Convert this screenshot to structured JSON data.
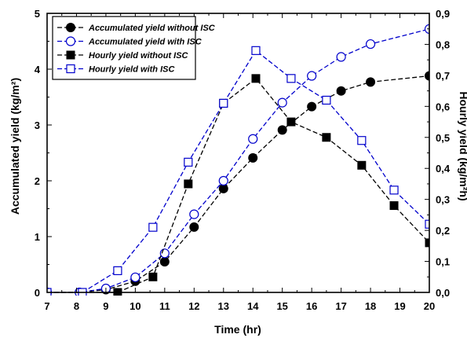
{
  "chart_data": {
    "type": "line",
    "xlabel": "Time (hr)",
    "ylabel_left": "Accumulated yield (kg/m²)",
    "ylabel_right": "Hourly yield (kg/m²h)",
    "xlim": [
      7,
      20
    ],
    "ylim_left": [
      0,
      5
    ],
    "ylim_right": [
      0,
      0.9
    ],
    "x_ticks": [
      "7",
      "8",
      "9",
      "10",
      "11",
      "12",
      "13",
      "14",
      "15",
      "16",
      "17",
      "18",
      "19",
      "20"
    ],
    "y_left_ticks": [
      "0",
      "1",
      "2",
      "3",
      "4",
      "5"
    ],
    "y_right_ticks": [
      "0,0",
      "0,1",
      "0,2",
      "0,3",
      "0,4",
      "0,5",
      "0,6",
      "0,7",
      "0,8",
      "0,9"
    ],
    "grid": false,
    "legend_position": "top-left",
    "series": [
      {
        "name": "Accumulated yield without ISC",
        "axis": "left",
        "color": "#000000",
        "marker": "filled-circle",
        "x": [
          7.0,
          8.1,
          9.0,
          10.0,
          11.0,
          12.0,
          13.0,
          14.0,
          15.0,
          16.0,
          17.0,
          18.0,
          20.0
        ],
        "y": [
          0.0,
          0.0,
          0.05,
          0.2,
          0.55,
          1.17,
          1.86,
          2.41,
          2.91,
          3.33,
          3.61,
          3.77,
          3.88
        ]
      },
      {
        "name": "Accumulated yield with ISC",
        "axis": "left",
        "color": "#0000cc",
        "marker": "open-circle",
        "x": [
          7.0,
          8.1,
          9.0,
          10.0,
          11.0,
          12.0,
          13.0,
          14.0,
          15.0,
          16.0,
          17.0,
          18.0,
          20.0
        ],
        "y": [
          0.0,
          0.0,
          0.07,
          0.27,
          0.7,
          1.4,
          2.0,
          2.75,
          3.4,
          3.88,
          4.22,
          4.45,
          4.72
        ]
      },
      {
        "name": "Hourly yield without ISC",
        "axis": "right",
        "color": "#000000",
        "marker": "filled-square",
        "x": [
          7.0,
          8.2,
          9.4,
          10.6,
          11.8,
          13.0,
          14.1,
          15.3,
          16.5,
          17.7,
          18.8,
          20.0
        ],
        "y": [
          0.0,
          0.0,
          0.0,
          0.05,
          0.35,
          0.61,
          0.69,
          0.55,
          0.5,
          0.41,
          0.28,
          0.16
        ]
      },
      {
        "name": "Hourly yield with ISC",
        "axis": "right",
        "color": "#0000cc",
        "marker": "open-square",
        "x": [
          7.0,
          8.2,
          9.4,
          10.6,
          11.8,
          13.0,
          14.1,
          15.3,
          16.5,
          17.7,
          18.8,
          20.0
        ],
        "y": [
          0.0,
          0.0,
          0.07,
          0.21,
          0.42,
          0.61,
          0.78,
          0.69,
          0.62,
          0.49,
          0.33,
          0.22
        ]
      }
    ]
  }
}
